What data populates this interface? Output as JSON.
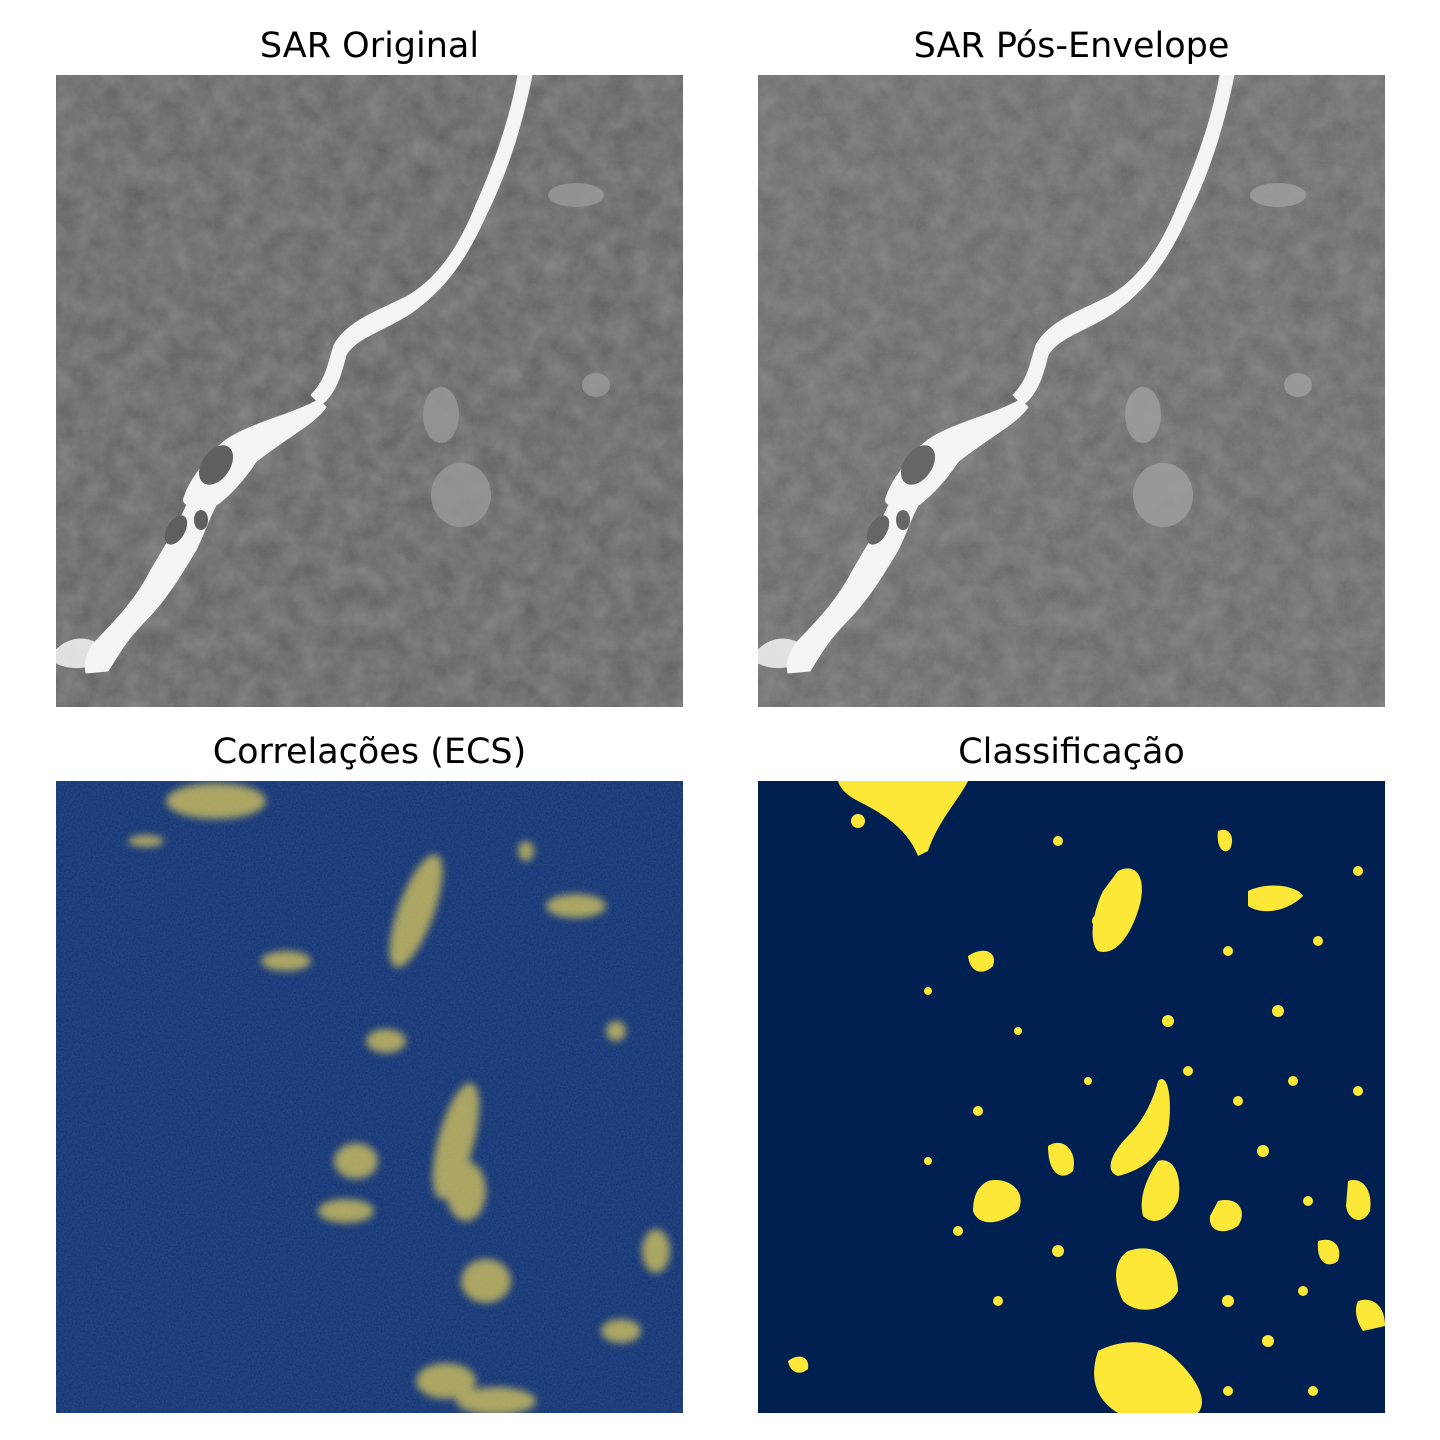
{
  "panels": [
    {
      "title": "SAR Original"
    },
    {
      "title": "SAR Pós-Envelope"
    },
    {
      "title": "Correlações (ECS)"
    },
    {
      "title": "Classificação"
    }
  ],
  "colors": {
    "sar_background": "#5f5f5f",
    "sar_texture_dark": "#474747",
    "sar_texture_light": "#7a7a7a",
    "river": "#f4f4f4",
    "ecs_background": "#0d2e6e",
    "ecs_highlight": "#e9d35a",
    "class_background": "#002051",
    "class_highlight": "#fde737"
  }
}
